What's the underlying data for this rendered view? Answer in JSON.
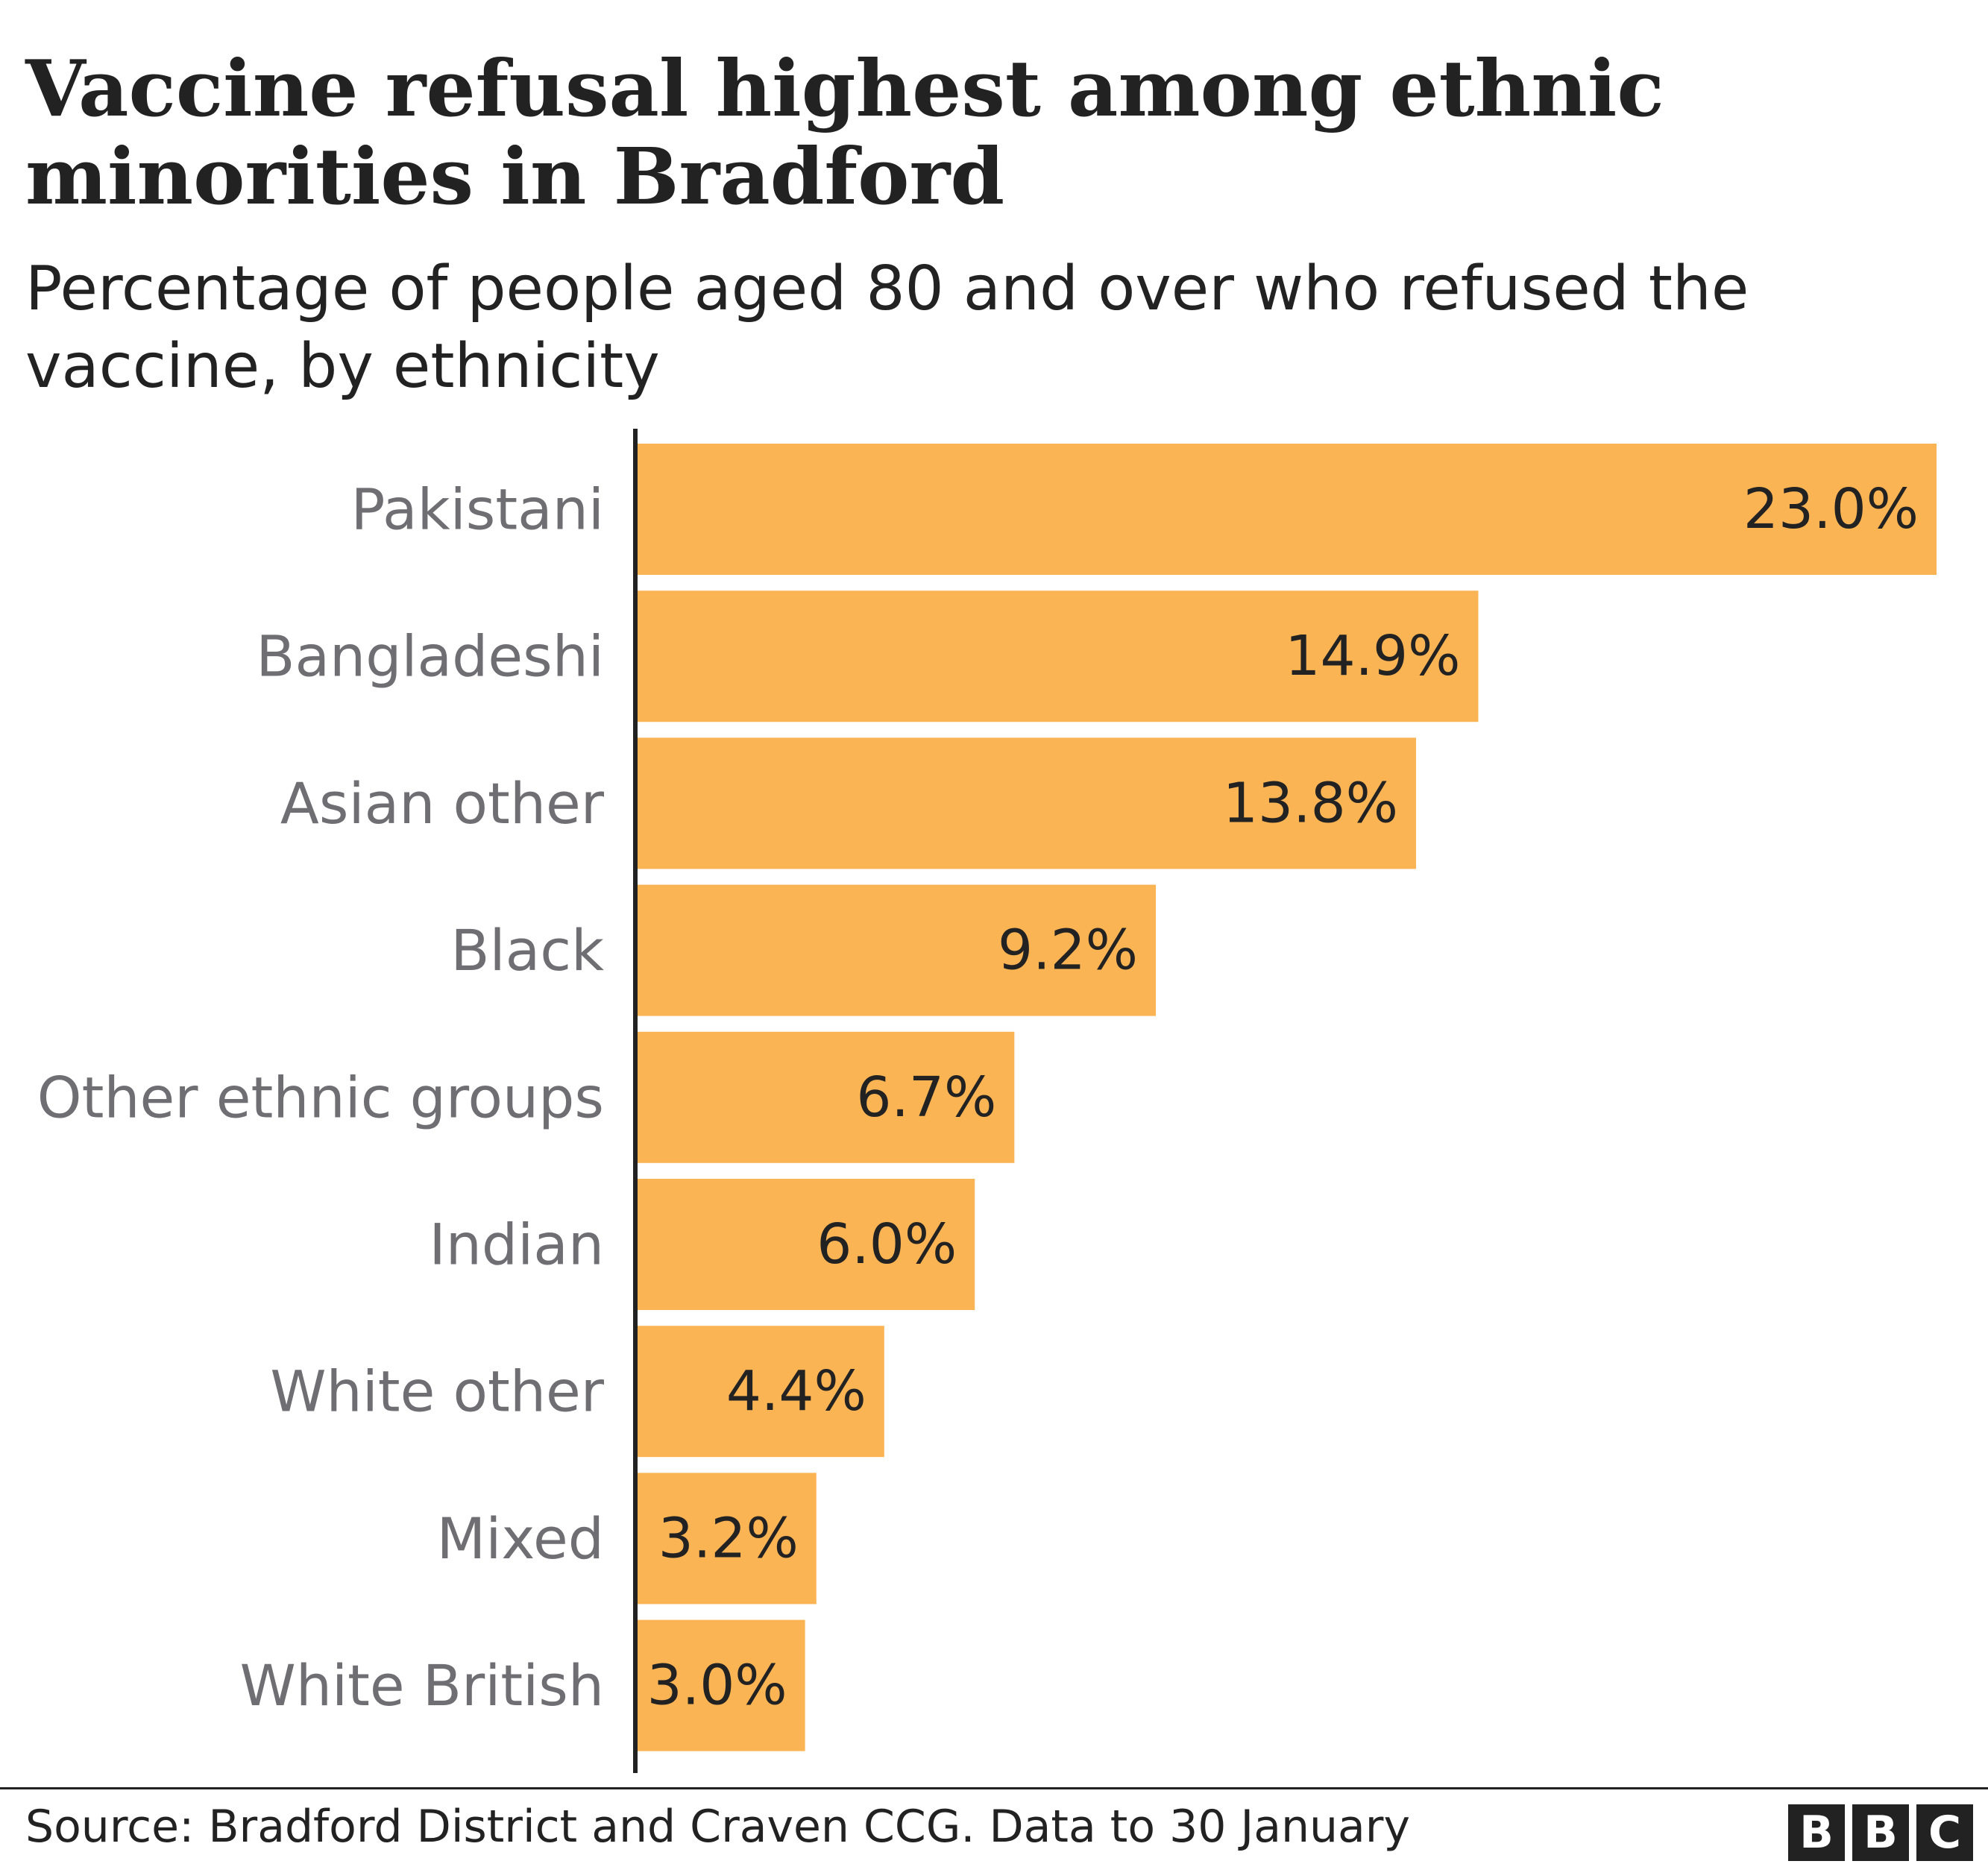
{
  "title": "Vaccine refusal highest among ethnic minorities in Bradford",
  "subtitle": "Percentage of people aged 80 and over who refused the vaccine, by ethnicity",
  "source": "Source: Bradford District and Craven CCG. Data to 30 January",
  "logo": [
    "B",
    "B",
    "C"
  ],
  "colors": {
    "bar": "#fbb454",
    "axis": "#222222",
    "category_label": "#6e6e73",
    "value_label": "#222222"
  },
  "chart_data": {
    "type": "bar",
    "orientation": "horizontal",
    "title": "Vaccine refusal highest among ethnic minorities in Bradford",
    "subtitle": "Percentage of people aged 80 and over who refused the vaccine, by ethnicity",
    "categories": [
      "Pakistani",
      "Bangladeshi",
      "Asian other",
      "Black",
      "Other ethnic groups",
      "Indian",
      "White other",
      "Mixed",
      "White British"
    ],
    "values": [
      23.0,
      14.9,
      13.8,
      9.2,
      6.7,
      6.0,
      4.4,
      3.2,
      3.0
    ],
    "value_labels": [
      "23.0%",
      "14.9%",
      "13.8%",
      "9.2%",
      "6.7%",
      "6.0%",
      "4.4%",
      "3.2%",
      "3.0%"
    ],
    "unit": "%",
    "xlim": [
      0,
      23.0
    ],
    "grid": false,
    "legend": "none"
  }
}
